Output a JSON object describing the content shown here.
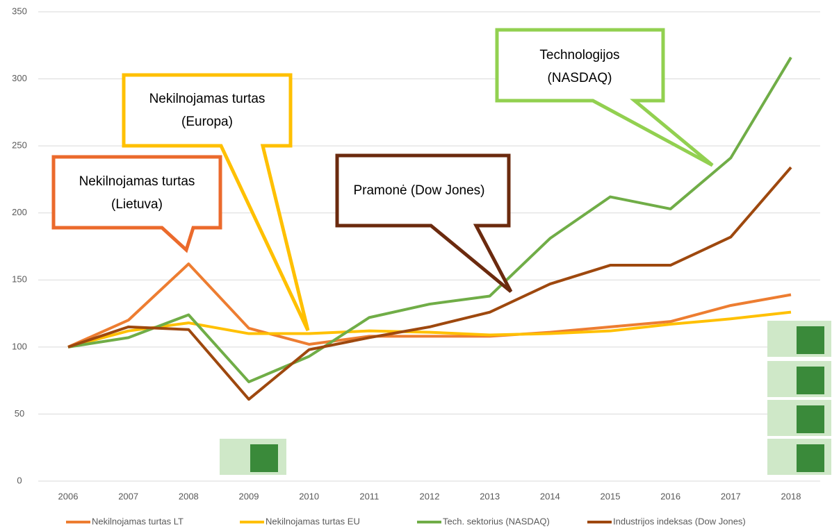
{
  "chart_data": {
    "type": "line",
    "categories": [
      "2006",
      "2007",
      "2008",
      "2009",
      "2010",
      "2011",
      "2012",
      "2013",
      "2014",
      "2015",
      "2016",
      "2017",
      "2018"
    ],
    "series": [
      {
        "name": "Nekilnojamas turtas LT",
        "color": "#ED7D31",
        "values": [
          100,
          120,
          162,
          114,
          102,
          108,
          108,
          108,
          111,
          115,
          119,
          131,
          139
        ]
      },
      {
        "name": "Nekilnojamas turtas EU",
        "color": "#FFC000",
        "values": [
          100,
          112,
          118,
          110,
          110,
          112,
          111,
          109,
          110,
          112,
          117,
          121,
          126
        ]
      },
      {
        "name": "Tech. sektorius (NASDAQ)",
        "color": "#70AD47",
        "values": [
          100,
          107,
          124,
          74,
          93,
          122,
          132,
          138,
          181,
          212,
          203,
          241,
          316
        ]
      },
      {
        "name": "Industrijos indeksas (Dow Jones)",
        "color": "#9E480E",
        "values": [
          100,
          115,
          113,
          61,
          98,
          107,
          115,
          126,
          147,
          161,
          161,
          182,
          234
        ]
      }
    ],
    "ylim": [
      0,
      350
    ],
    "yticks": [
      0,
      50,
      100,
      150,
      200,
      250,
      300,
      350
    ],
    "grid": true,
    "legend": "bottom",
    "annotations": [
      {
        "lines": [
          "Nekilnojamas turtas",
          "(Lietuva)"
        ],
        "color": "#EB6A2C"
      },
      {
        "lines": [
          "Nekilnojamas turtas",
          "(Europa)"
        ],
        "color": "#FFC000"
      },
      {
        "lines": [
          "Pramonė (Dow Jones)"
        ],
        "color": "#6B2A0E"
      },
      {
        "lines": [
          "Technologijos",
          "(NASDAQ)"
        ],
        "color": "#92D050"
      }
    ]
  }
}
